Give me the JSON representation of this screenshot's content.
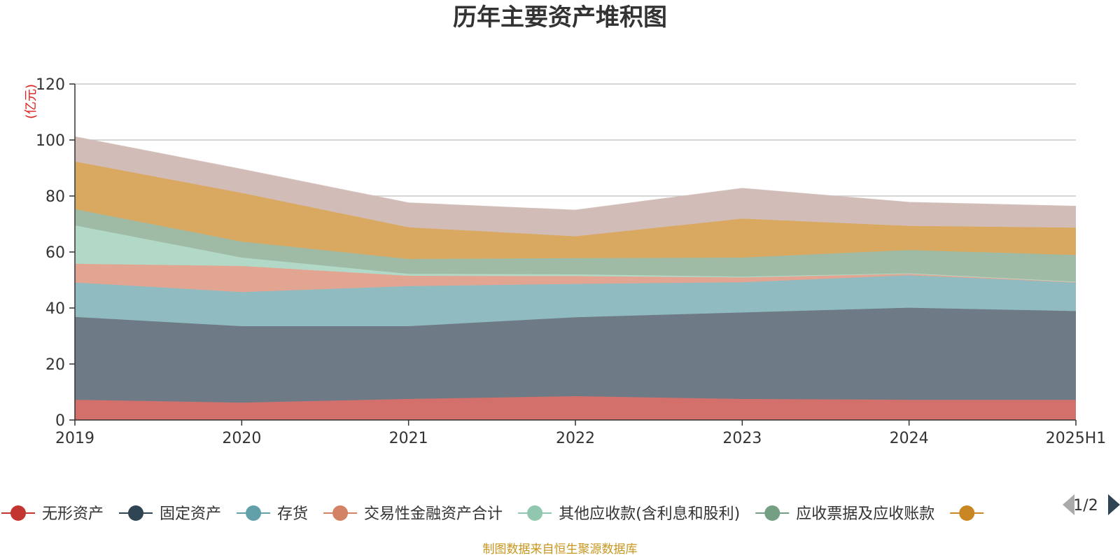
{
  "chart_data": {
    "type": "area",
    "stacked": true,
    "title": "历年主要资产堆积图",
    "unit_label": "(亿元)",
    "categories": [
      "2019",
      "2020",
      "2021",
      "2022",
      "2023",
      "2024",
      "2025H1"
    ],
    "ylim": [
      0,
      120
    ],
    "yticks": [
      "0",
      "20",
      "40",
      "60",
      "80",
      "100",
      "120"
    ],
    "grid": true,
    "legend_position": "bottom",
    "series": [
      {
        "name": "无形资产",
        "color": "#c23531",
        "fill": "#d4706c",
        "values": [
          7.2,
          6.2,
          7.5,
          8.5,
          7.5,
          7.2,
          7.2
        ]
      },
      {
        "name": "固定资产",
        "color": "#2f4554",
        "fill": "#6e7b86",
        "values": [
          29.6,
          27.3,
          26.0,
          28.2,
          30.9,
          32.9,
          31.7
        ]
      },
      {
        "name": "存货",
        "color": "#61a0a8",
        "fill": "#90bbc0",
        "values": [
          12.3,
          12.2,
          14.3,
          11.9,
          10.8,
          11.6,
          10.2
        ]
      },
      {
        "name": "交易性金融资产合计",
        "color": "#d48265",
        "fill": "#e2a592",
        "values": [
          6.7,
          9.3,
          3.7,
          2.8,
          1.7,
          0.5,
          0.1
        ]
      },
      {
        "name": "其他应收款(含利息和股利)",
        "color": "#91c7ae",
        "fill": "#b2d9c7",
        "values": [
          13.7,
          3.0,
          0.7,
          0.6,
          0.3,
          0.2,
          0.2
        ]
      },
      {
        "name": "应收票据及应收账款",
        "color": "#749f83",
        "fill": "#9fbba5",
        "values": [
          5.8,
          5.7,
          5.3,
          5.8,
          6.8,
          8.3,
          9.5
        ]
      },
      {
        "name": "",
        "color": "#ca8622",
        "fill": "#d9a961",
        "values": [
          17.0,
          17.4,
          11.3,
          7.8,
          13.9,
          8.6,
          9.8
        ]
      },
      {
        "name": "",
        "color": "#bda29a",
        "fill": "#d1bcb7",
        "values": [
          8.8,
          8.4,
          8.7,
          9.3,
          10.8,
          8.4,
          7.6
        ]
      }
    ]
  },
  "legend": {
    "visible_count": 7,
    "page_indicator": "1/2"
  },
  "footer": {
    "source": "制图数据来自恒生聚源数据库"
  }
}
